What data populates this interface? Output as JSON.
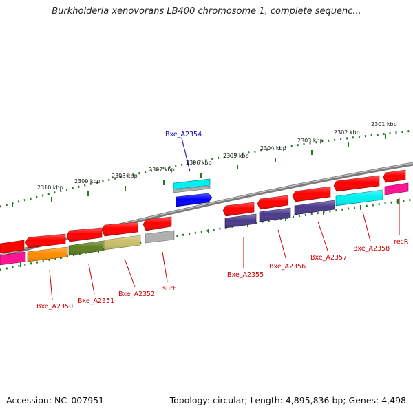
{
  "title": "Burkholderia xenovorans LB400 chromosome 1, complete sequenc...",
  "footer": {
    "accession": "Accession: NC_007951",
    "topology": "Topology: circular; Length: 4,895,836 bp; Genes: 4,498"
  },
  "colors": {
    "backbone": "#7a7a7a",
    "ruler": "#1e7d1e",
    "gene_label": "#cc0000",
    "highlight_label": "#0000bb"
  },
  "ruler_labels": [
    "2301 kbp",
    "2302 kbp",
    "2303 kbp",
    "2304 kbp",
    "2305 kbp",
    "2306 kbp",
    "2307 kbp",
    "2308 kbp",
    "2309 kbp",
    "2310 kbp"
  ],
  "gene_labels": [
    "recR",
    "Bxe_A2358",
    "Bxe_A2357",
    "Bxe_A2356",
    "Bxe_A2355",
    "surE",
    "Bxe_A2352",
    "Bxe_A2351",
    "Bxe_A2350"
  ],
  "highlight_label": "Bxe_A2354",
  "features": [
    {
      "color": "#ff0000",
      "strand": "minus",
      "track": 1
    },
    {
      "color": "#ff0000",
      "strand": "minus",
      "track": 1
    },
    {
      "color": "#ff0000",
      "strand": "minus",
      "track": 1
    },
    {
      "color": "#ff0000",
      "strand": "minus",
      "track": 1
    },
    {
      "color": "#ff0000",
      "strand": "minus",
      "track": 1
    },
    {
      "color": "#ff0000",
      "strand": "minus",
      "track": 1
    },
    {
      "color": "#ff0000",
      "strand": "minus",
      "track": 1
    },
    {
      "color": "#ff0000",
      "strand": "minus",
      "track": 1
    },
    {
      "color": "#ff0000",
      "strand": "minus",
      "track": 1
    },
    {
      "color": "#ff0000",
      "strand": "minus",
      "track": 1
    },
    {
      "color": "#ff0000",
      "strand": "minus",
      "track": 1
    },
    {
      "color": "#ff1493",
      "strand": "minus",
      "track": 2
    },
    {
      "color": "#00f0f0",
      "strand": "minus",
      "track": 2
    },
    {
      "color": "#4b3a8c",
      "strand": "minus",
      "track": 2
    },
    {
      "color": "#4b3a8c",
      "strand": "minus",
      "track": 2
    },
    {
      "color": "#4b3a8c",
      "strand": "minus",
      "track": 2
    },
    {
      "color": "#b0b0b0",
      "strand": "minus",
      "track": 2
    },
    {
      "color": "#c8bf6a",
      "strand": "minus",
      "track": 2
    },
    {
      "color": "#5d7f1d",
      "strand": "minus",
      "track": 2
    },
    {
      "color": "#ff8c00",
      "strand": "minus",
      "track": 2
    },
    {
      "color": "#ff1493",
      "strand": "minus",
      "track": 2
    },
    {
      "color": "#0000ff",
      "strand": "plus",
      "track": 1
    },
    {
      "color": "#00f0f0",
      "strand": "plus",
      "track": 2
    },
    {
      "color": "#b0b0b0",
      "strand": "plus",
      "track": 2
    }
  ]
}
